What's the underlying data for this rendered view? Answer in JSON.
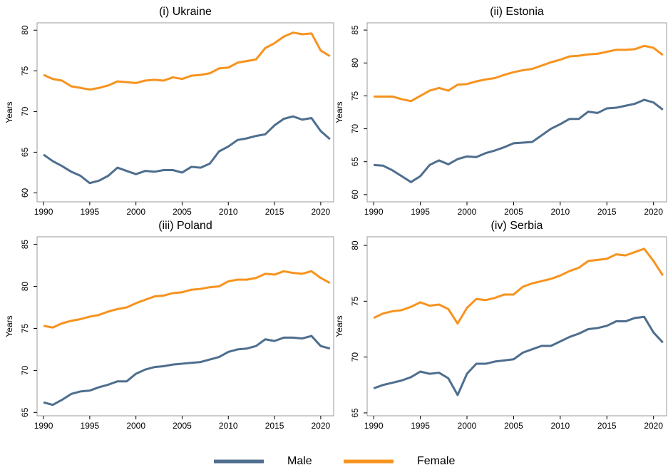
{
  "chart_data": [
    {
      "type": "line",
      "title": "(i) Ukraine",
      "ylabel": "Years",
      "x": [
        1990,
        1991,
        1992,
        1993,
        1994,
        1995,
        1996,
        1997,
        1998,
        1999,
        2000,
        2001,
        2002,
        2003,
        2004,
        2005,
        2006,
        2007,
        2008,
        2009,
        2010,
        2011,
        2012,
        2013,
        2014,
        2015,
        2016,
        2017,
        2018,
        2019,
        2020,
        2021
      ],
      "series": [
        {
          "name": "Male",
          "color": "#4e6e8e",
          "values": [
            64.7,
            63.9,
            63.3,
            62.6,
            62.1,
            61.2,
            61.5,
            62.1,
            63.1,
            62.7,
            62.3,
            62.7,
            62.6,
            62.8,
            62.8,
            62.5,
            63.2,
            63.1,
            63.6,
            65.1,
            65.7,
            66.5,
            66.7,
            67.0,
            67.2,
            68.3,
            69.1,
            69.4,
            69.0,
            69.2,
            67.6,
            66.6
          ]
        },
        {
          "name": "Female",
          "color": "#f7931e",
          "values": [
            74.5,
            74.0,
            73.8,
            73.1,
            72.9,
            72.7,
            72.9,
            73.2,
            73.7,
            73.6,
            73.5,
            73.8,
            73.9,
            73.8,
            74.2,
            74.0,
            74.4,
            74.5,
            74.7,
            75.3,
            75.4,
            76.0,
            76.2,
            76.4,
            77.8,
            78.4,
            79.2,
            79.7,
            79.5,
            79.6,
            77.5,
            76.8
          ]
        }
      ],
      "xlim": [
        1989.3,
        2021.4
      ],
      "xticks": [
        1990,
        1995,
        2000,
        2005,
        2010,
        2015,
        2020
      ],
      "ylim": [
        58.9,
        80.9
      ],
      "yticks": [
        60,
        65,
        70,
        75,
        80
      ]
    },
    {
      "type": "line",
      "title": "(ii) Estonia",
      "ylabel": "Years",
      "x": [
        1990,
        1991,
        1992,
        1993,
        1994,
        1995,
        1996,
        1997,
        1998,
        1999,
        2000,
        2001,
        2002,
        2003,
        2004,
        2005,
        2006,
        2007,
        2008,
        2009,
        2010,
        2011,
        2012,
        2013,
        2014,
        2015,
        2016,
        2017,
        2018,
        2019,
        2020,
        2021
      ],
      "series": [
        {
          "name": "Male",
          "color": "#4e6e8e",
          "values": [
            64.5,
            64.4,
            63.7,
            62.8,
            61.9,
            62.8,
            64.5,
            65.2,
            64.6,
            65.4,
            65.8,
            65.7,
            66.3,
            66.7,
            67.2,
            67.8,
            67.9,
            68.0,
            69.0,
            70.0,
            70.7,
            71.5,
            71.5,
            72.6,
            72.4,
            73.1,
            73.2,
            73.5,
            73.8,
            74.4,
            74.0,
            72.9
          ]
        },
        {
          "name": "Female",
          "color": "#f7931e",
          "values": [
            74.9,
            74.9,
            74.9,
            74.5,
            74.2,
            75.0,
            75.8,
            76.2,
            75.8,
            76.7,
            76.8,
            77.2,
            77.5,
            77.7,
            78.2,
            78.6,
            78.9,
            79.1,
            79.6,
            80.1,
            80.5,
            81.0,
            81.1,
            81.3,
            81.4,
            81.7,
            82.0,
            82.0,
            82.1,
            82.6,
            82.3,
            81.2
          ]
        }
      ],
      "xlim": [
        1989.3,
        2021.4
      ],
      "xticks": [
        1990,
        1995,
        2000,
        2005,
        2010,
        2015,
        2020
      ],
      "ylim": [
        58.9,
        86.1
      ],
      "yticks": [
        60,
        65,
        70,
        75,
        80,
        85
      ]
    },
    {
      "type": "line",
      "title": "(iii) Poland",
      "ylabel": "Years",
      "x": [
        1990,
        1991,
        1992,
        1993,
        1994,
        1995,
        1996,
        1997,
        1998,
        1999,
        2000,
        2001,
        2002,
        2003,
        2004,
        2005,
        2006,
        2007,
        2008,
        2009,
        2010,
        2011,
        2012,
        2013,
        2014,
        2015,
        2016,
        2017,
        2018,
        2019,
        2020,
        2021
      ],
      "series": [
        {
          "name": "Male",
          "color": "#4e6e8e",
          "values": [
            66.2,
            65.9,
            66.5,
            67.2,
            67.5,
            67.6,
            68.0,
            68.3,
            68.7,
            68.7,
            69.6,
            70.1,
            70.4,
            70.5,
            70.7,
            70.8,
            70.9,
            71.0,
            71.3,
            71.6,
            72.2,
            72.5,
            72.6,
            72.9,
            73.7,
            73.5,
            73.9,
            73.9,
            73.8,
            74.1,
            72.9,
            72.6
          ]
        },
        {
          "name": "Female",
          "color": "#f7931e",
          "values": [
            75.3,
            75.1,
            75.6,
            75.9,
            76.1,
            76.4,
            76.6,
            77.0,
            77.3,
            77.5,
            78.0,
            78.4,
            78.8,
            78.9,
            79.2,
            79.3,
            79.6,
            79.7,
            79.9,
            80.0,
            80.6,
            80.8,
            80.8,
            81.0,
            81.5,
            81.4,
            81.8,
            81.6,
            81.5,
            81.8,
            81.0,
            80.4
          ]
        }
      ],
      "xlim": [
        1989.3,
        2021.4
      ],
      "xticks": [
        1990,
        1995,
        2000,
        2005,
        2010,
        2015,
        2020
      ],
      "ylim": [
        64.6,
        85.9
      ],
      "yticks": [
        65,
        70,
        75,
        80,
        85
      ]
    },
    {
      "type": "line",
      "title": "(iv) Serbia",
      "ylabel": "Years",
      "x": [
        1990,
        1991,
        1992,
        1993,
        1994,
        1995,
        1996,
        1997,
        1998,
        1999,
        2000,
        2001,
        2002,
        2003,
        2004,
        2005,
        2006,
        2007,
        2008,
        2009,
        2010,
        2011,
        2012,
        2013,
        2014,
        2015,
        2016,
        2017,
        2018,
        2019,
        2020,
        2021
      ],
      "series": [
        {
          "name": "Male",
          "color": "#4e6e8e",
          "values": [
            67.2,
            67.5,
            67.7,
            67.9,
            68.2,
            68.7,
            68.5,
            68.6,
            68.1,
            66.6,
            68.5,
            69.4,
            69.4,
            69.6,
            69.7,
            69.8,
            70.4,
            70.7,
            71.0,
            71.0,
            71.4,
            71.8,
            72.1,
            72.5,
            72.6,
            72.8,
            73.2,
            73.2,
            73.5,
            73.6,
            72.2,
            71.3
          ]
        },
        {
          "name": "Female",
          "color": "#f7931e",
          "values": [
            73.5,
            73.9,
            74.1,
            74.2,
            74.5,
            74.9,
            74.6,
            74.7,
            74.3,
            73.0,
            74.4,
            75.2,
            75.1,
            75.3,
            75.6,
            75.6,
            76.3,
            76.6,
            76.8,
            77.0,
            77.3,
            77.7,
            78.0,
            78.6,
            78.7,
            78.8,
            79.2,
            79.1,
            79.4,
            79.7,
            78.6,
            77.3
          ]
        }
      ],
      "xlim": [
        1989.3,
        2021.4
      ],
      "xticks": [
        1990,
        1995,
        2000,
        2005,
        2010,
        2015,
        2020
      ],
      "ylim": [
        64.74,
        80.77
      ],
      "yticks": [
        65,
        70,
        75,
        80
      ]
    }
  ]
}
